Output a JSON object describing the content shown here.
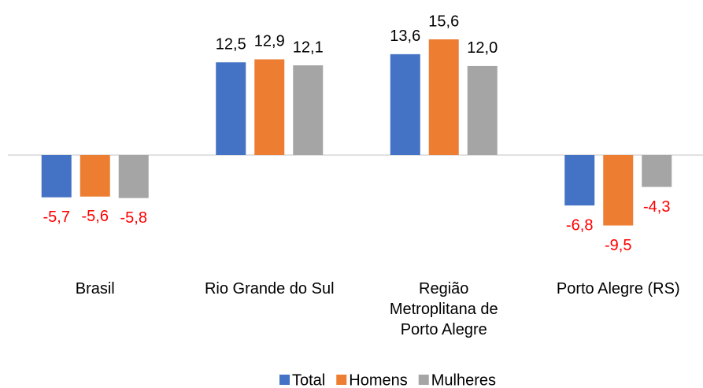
{
  "chart_data": {
    "type": "bar",
    "categories": [
      "Brasil",
      "Rio Grande do Sul",
      "Região\nMetroplitana de\nPorto Alegre",
      "Porto Alegre (RS)"
    ],
    "series": [
      {
        "name": "Total",
        "color": "#4472c4",
        "values": [
          -5.7,
          12.5,
          13.6,
          -6.8
        ],
        "value_labels": [
          "-5,7",
          "12,5",
          "13,6",
          "-6,8"
        ]
      },
      {
        "name": "Homens",
        "color": "#ed7d31",
        "values": [
          -5.6,
          12.9,
          15.6,
          -9.5
        ],
        "value_labels": [
          "-5,6",
          "12,9",
          "15,6",
          "-9,5"
        ]
      },
      {
        "name": "Mulheres",
        "color": "#a5a5a5",
        "values": [
          -5.8,
          12.1,
          12.0,
          -4.3
        ],
        "value_labels": [
          "-5,8",
          "12,1",
          "12,0",
          "-4,3"
        ]
      }
    ],
    "negative_label_color": "#ff0000",
    "legend": "bottom"
  }
}
